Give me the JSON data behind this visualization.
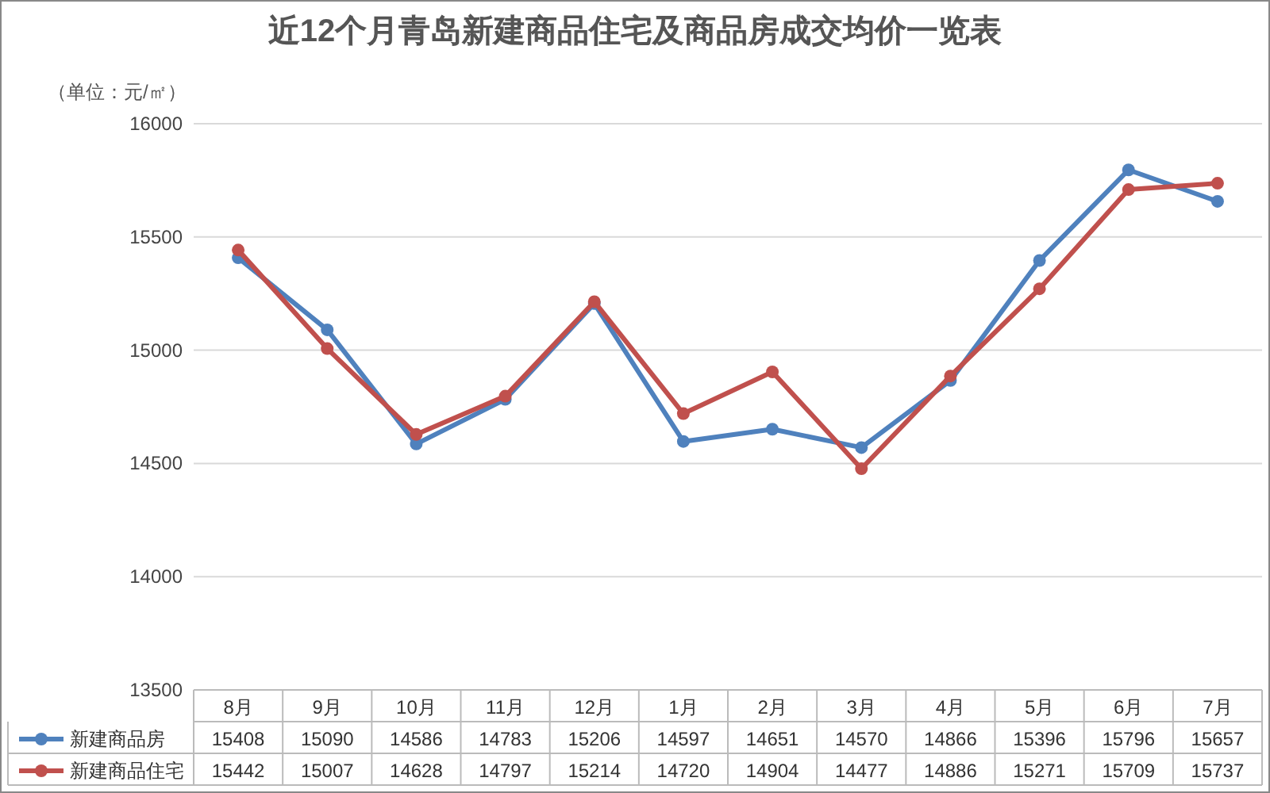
{
  "chart_data": {
    "type": "line",
    "title": "近12个月青岛新建商品住宅及商品房成交均价一览表",
    "ylabel": "（单位：元/㎡）",
    "categories": [
      "8月",
      "9月",
      "10月",
      "11月",
      "12月",
      "1月",
      "2月",
      "3月",
      "4月",
      "5月",
      "6月",
      "7月"
    ],
    "series": [
      {
        "name": "新建商品房",
        "color": "#4f81bd",
        "values": [
          15408,
          15090,
          14586,
          14783,
          15206,
          14597,
          14651,
          14570,
          14866,
          15396,
          15796,
          15657
        ]
      },
      {
        "name": "新建商品住宅",
        "color": "#c0504d",
        "values": [
          15442,
          15007,
          14628,
          14797,
          15214,
          14720,
          14904,
          14477,
          14886,
          15271,
          15709,
          15737
        ]
      }
    ],
    "ylim": [
      13500,
      16000
    ],
    "yticks": [
      13500,
      14000,
      14500,
      15000,
      15500,
      16000
    ],
    "grid": "y",
    "marker": "circle",
    "legend": "bottom",
    "data_labels": true
  }
}
